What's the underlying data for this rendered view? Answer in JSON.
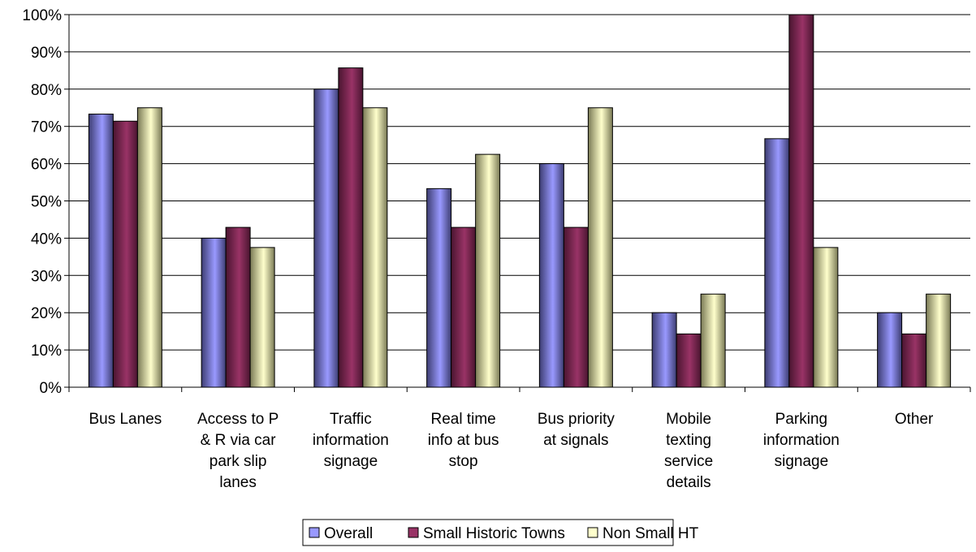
{
  "chart_data": {
    "type": "bar",
    "categories": [
      "Bus Lanes",
      "Access to P & R via car park slip lanes",
      "Traffic information signage",
      "Real time info at bus stop",
      "Bus priority at signals",
      "Mobile texting service details",
      "Parking information signage",
      "Other"
    ],
    "category_lines": [
      [
        "Bus Lanes"
      ],
      [
        "Access to P",
        "& R via car",
        "park slip",
        "lanes"
      ],
      [
        "Traffic",
        "information",
        "signage"
      ],
      [
        "Real time",
        "info at bus",
        "stop"
      ],
      [
        "Bus priority",
        "at signals"
      ],
      [
        "Mobile",
        "texting",
        "service",
        "details"
      ],
      [
        "Parking",
        "information",
        "signage"
      ],
      [
        "Other"
      ]
    ],
    "series": [
      {
        "name": "Overall",
        "values": [
          73.3,
          40,
          80,
          53.3,
          60,
          20,
          66.7,
          20
        ],
        "color": "#9999ff",
        "dark": "#3d3d72"
      },
      {
        "name": "Small Historic Towns",
        "values": [
          71.4,
          42.9,
          85.7,
          42.9,
          42.9,
          14.3,
          100,
          14.3
        ],
        "color": "#993366",
        "dark": "#4a1530"
      },
      {
        "name": "Non Small HT",
        "values": [
          75,
          37.5,
          75,
          62.5,
          75,
          25,
          37.5,
          25
        ],
        "color": "#ffffcc",
        "dark": "#7a7a55"
      }
    ],
    "yticks": [
      "0%",
      "10%",
      "20%",
      "30%",
      "40%",
      "50%",
      "60%",
      "70%",
      "80%",
      "90%",
      "100%"
    ],
    "ylim": [
      0,
      100
    ],
    "grid": true,
    "legend_position": "bottom"
  }
}
